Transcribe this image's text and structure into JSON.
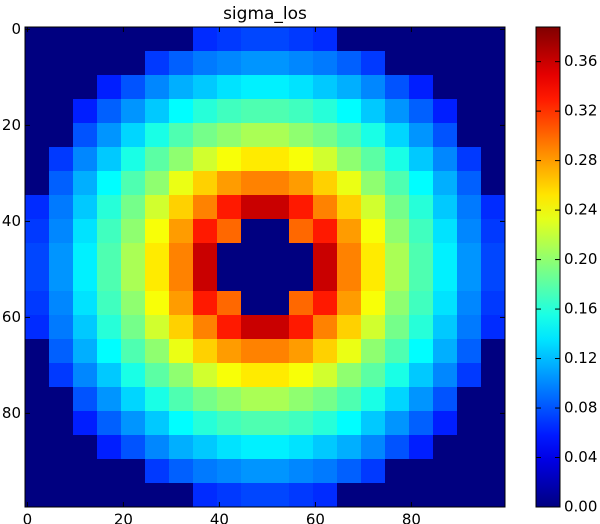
{
  "chart_data": {
    "type": "heatmap",
    "title": "sigma_los",
    "colormap": "jet",
    "xlim": [
      -0.5,
      99.5
    ],
    "ylim": [
      99.5,
      -0.5
    ],
    "xticks": [
      0,
      20,
      40,
      60,
      80
    ],
    "yticks": [
      0,
      20,
      40,
      60,
      80
    ],
    "clim": [
      0,
      0.388
    ],
    "cticks": [
      {
        "value": 0,
        "label": "0.00"
      },
      {
        "value": 0.04,
        "label": "0.04"
      },
      {
        "value": 0.08,
        "label": "0.08"
      },
      {
        "value": 0.12,
        "label": "0.12"
      },
      {
        "value": 0.16,
        "label": "0.16"
      },
      {
        "value": 0.2,
        "label": "0.20"
      },
      {
        "value": 0.24,
        "label": "0.24"
      },
      {
        "value": 0.28,
        "label": "0.28"
      },
      {
        "value": 0.32,
        "label": "0.32"
      },
      {
        "value": 0.36,
        "label": "0.36"
      }
    ],
    "z": [
      [
        0,
        0,
        0,
        0,
        0,
        0,
        0,
        0.065,
        0.07,
        0.075,
        0.075,
        0.07,
        0.065,
        0,
        0,
        0,
        0,
        0,
        0,
        0
      ],
      [
        0,
        0,
        0,
        0,
        0,
        0.07,
        0.085,
        0.095,
        0.1,
        0.105,
        0.105,
        0.1,
        0.095,
        0.085,
        0.07,
        0,
        0,
        0,
        0,
        0
      ],
      [
        0,
        0,
        0,
        0.06,
        0.08,
        0.1,
        0.115,
        0.125,
        0.135,
        0.14,
        0.14,
        0.135,
        0.125,
        0.115,
        0.1,
        0.08,
        0.06,
        0,
        0,
        0
      ],
      [
        0,
        0,
        0.06,
        0.085,
        0.105,
        0.125,
        0.145,
        0.16,
        0.17,
        0.175,
        0.175,
        0.17,
        0.16,
        0.145,
        0.125,
        0.105,
        0.085,
        0.06,
        0,
        0
      ],
      [
        0,
        0,
        0.08,
        0.105,
        0.13,
        0.155,
        0.175,
        0.19,
        0.2,
        0.21,
        0.21,
        0.2,
        0.19,
        0.175,
        0.155,
        0.13,
        0.105,
        0.08,
        0,
        0
      ],
      [
        0,
        0.07,
        0.1,
        0.125,
        0.155,
        0.18,
        0.2,
        0.225,
        0.24,
        0.25,
        0.25,
        0.24,
        0.225,
        0.2,
        0.18,
        0.155,
        0.125,
        0.1,
        0.07,
        0
      ],
      [
        0,
        0.085,
        0.115,
        0.145,
        0.175,
        0.2,
        0.235,
        0.26,
        0.28,
        0.29,
        0.29,
        0.28,
        0.26,
        0.235,
        0.2,
        0.175,
        0.145,
        0.115,
        0.085,
        0
      ],
      [
        0.065,
        0.095,
        0.125,
        0.16,
        0.19,
        0.225,
        0.26,
        0.29,
        0.33,
        0.36,
        0.36,
        0.33,
        0.29,
        0.26,
        0.225,
        0.19,
        0.16,
        0.125,
        0.095,
        0.065
      ],
      [
        0.07,
        0.1,
        0.135,
        0.17,
        0.2,
        0.24,
        0.28,
        0.33,
        0.3,
        0,
        0,
        0.3,
        0.33,
        0.28,
        0.24,
        0.2,
        0.17,
        0.135,
        0.1,
        0.07
      ],
      [
        0.075,
        0.105,
        0.14,
        0.175,
        0.21,
        0.25,
        0.29,
        0.36,
        0,
        0,
        0,
        0,
        0.36,
        0.29,
        0.25,
        0.21,
        0.175,
        0.14,
        0.105,
        0.075
      ],
      [
        0.075,
        0.105,
        0.14,
        0.175,
        0.21,
        0.25,
        0.29,
        0.36,
        0,
        0,
        0,
        0,
        0.36,
        0.29,
        0.25,
        0.21,
        0.175,
        0.14,
        0.105,
        0.075
      ],
      [
        0.07,
        0.1,
        0.135,
        0.17,
        0.2,
        0.24,
        0.28,
        0.33,
        0.3,
        0,
        0,
        0.3,
        0.33,
        0.28,
        0.24,
        0.2,
        0.17,
        0.135,
        0.1,
        0.07
      ],
      [
        0.065,
        0.095,
        0.125,
        0.16,
        0.19,
        0.225,
        0.26,
        0.29,
        0.33,
        0.36,
        0.36,
        0.33,
        0.29,
        0.26,
        0.225,
        0.19,
        0.16,
        0.125,
        0.095,
        0.065
      ],
      [
        0,
        0.085,
        0.115,
        0.145,
        0.175,
        0.2,
        0.235,
        0.26,
        0.28,
        0.29,
        0.29,
        0.28,
        0.26,
        0.235,
        0.2,
        0.175,
        0.145,
        0.115,
        0.085,
        0
      ],
      [
        0,
        0.07,
        0.1,
        0.125,
        0.155,
        0.18,
        0.2,
        0.225,
        0.24,
        0.25,
        0.25,
        0.24,
        0.225,
        0.2,
        0.18,
        0.155,
        0.125,
        0.1,
        0.07,
        0
      ],
      [
        0,
        0,
        0.08,
        0.105,
        0.13,
        0.155,
        0.175,
        0.19,
        0.2,
        0.21,
        0.21,
        0.2,
        0.19,
        0.175,
        0.155,
        0.13,
        0.105,
        0.08,
        0,
        0
      ],
      [
        0,
        0,
        0.06,
        0.085,
        0.105,
        0.125,
        0.145,
        0.16,
        0.17,
        0.175,
        0.175,
        0.17,
        0.16,
        0.145,
        0.125,
        0.105,
        0.085,
        0.06,
        0,
        0
      ],
      [
        0,
        0,
        0,
        0.06,
        0.08,
        0.1,
        0.115,
        0.125,
        0.135,
        0.14,
        0.14,
        0.135,
        0.125,
        0.115,
        0.1,
        0.08,
        0.06,
        0,
        0,
        0
      ],
      [
        0,
        0,
        0,
        0,
        0,
        0.07,
        0.085,
        0.095,
        0.1,
        0.105,
        0.105,
        0.1,
        0.095,
        0.085,
        0.07,
        0,
        0,
        0,
        0,
        0
      ],
      [
        0,
        0,
        0,
        0,
        0,
        0,
        0,
        0.065,
        0.07,
        0.075,
        0.075,
        0.07,
        0.065,
        0,
        0,
        0,
        0,
        0,
        0,
        0
      ]
    ]
  }
}
